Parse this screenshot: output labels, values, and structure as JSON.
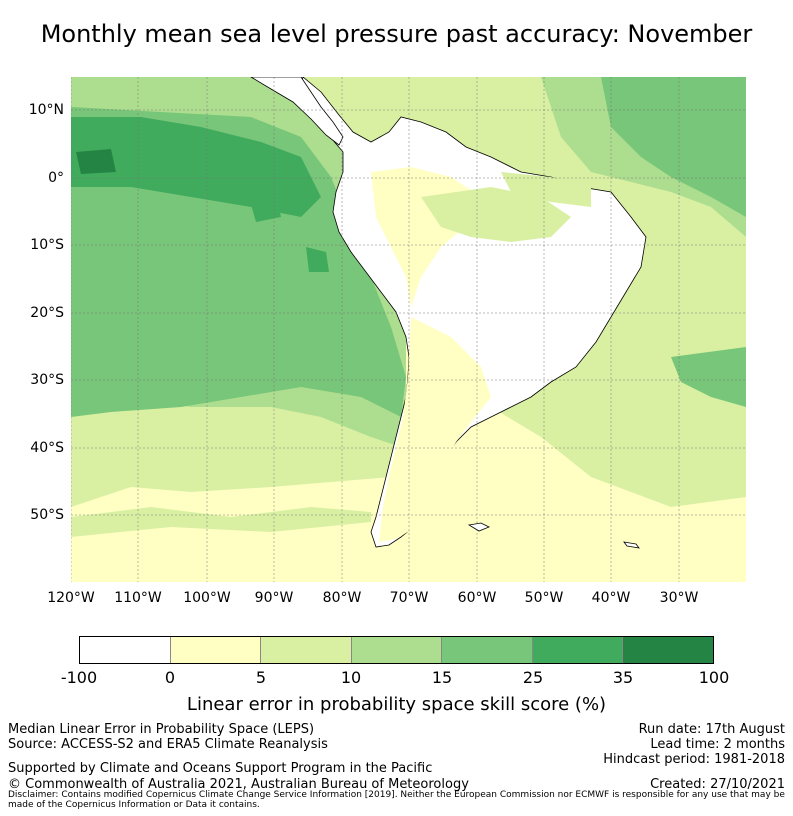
{
  "title": "Monthly mean sea level pressure past accuracy: November",
  "map": {
    "lat_labels": [
      "10°N",
      "0°",
      "10°S",
      "20°S",
      "30°S",
      "40°S",
      "50°S"
    ],
    "lon_labels": [
      "120°W",
      "110°W",
      "100°W",
      "90°W",
      "80°W",
      "70°W",
      "60°W",
      "50°W",
      "40°W",
      "30°W"
    ],
    "land_color": "#ffffff",
    "coast_color": "#000000"
  },
  "colorbar": {
    "ticks": [
      "-100",
      "0",
      "5",
      "10",
      "15",
      "25",
      "35",
      "100"
    ],
    "colors": [
      "#ffffff",
      "#ffffc4",
      "#d9f0a3",
      "#addd8e",
      "#78c679",
      "#41ab5d",
      "#238443"
    ],
    "label": "Linear error in probability space skill score (%)"
  },
  "footer": {
    "left_line1": "Median Linear Error in Probability Space (LEPS)",
    "left_line2": "Source: ACCESS-S2 and ERA5 Climate Reanalysis",
    "left_line3": "Supported by Climate and Oceans Support Program in the Pacific",
    "left_line4": "© Commonwealth of Australia 2021, Australian Bureau of Meteorology",
    "right_line1": "Run date: 17th August",
    "right_line2": "Lead time: 2 months",
    "right_line3": "Hindcast period: 1981-2018",
    "right_line4": "Created: 27/10/2021",
    "disclaimer": "Disclaimer: Contains modified Copernicus Climate Change Service Information [2019]. Neither the European Commission nor ECMWF is responsible for any use that may be made of the Copernicus Information or Data it contains."
  }
}
